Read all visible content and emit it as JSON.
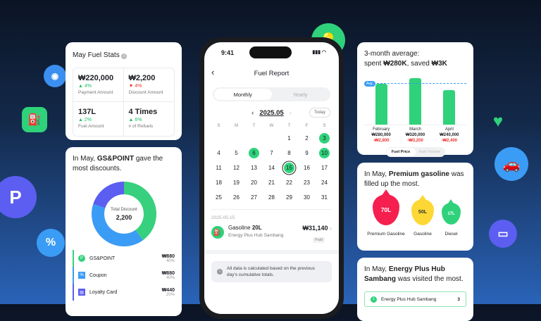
{
  "stats_card": {
    "title": "May Fuel Stats",
    "items": [
      {
        "value": "₩220,000",
        "change": "▲ 4%",
        "dir": "up",
        "label": "Payment Amount"
      },
      {
        "value": "₩2,200",
        "change": "▼ 4%",
        "dir": "down",
        "label": "Discount Amount"
      },
      {
        "value": "137L",
        "change": "▲ 2%",
        "dir": "up",
        "label": "Fuel Amount"
      },
      {
        "value": "4 Times",
        "change": "▲ 6%",
        "dir": "up",
        "label": "# of Refuels"
      }
    ]
  },
  "discount_card": {
    "title_pre": "In May, ",
    "title_bold": "GS&POINT",
    "title_post": " gave the most discounts.",
    "center_label": "Total Discount",
    "center_value": "2,200",
    "chart_data": {
      "type": "pie",
      "categories": [
        "GS&POINT",
        "Coupon",
        "Loyalty Card"
      ],
      "values": [
        880,
        880,
        440
      ],
      "percents": [
        40,
        40,
        20
      ],
      "colors": [
        "#37d07e",
        "#3b9cf5",
        "#5b5ef0"
      ]
    },
    "items": [
      {
        "label": "GS&POINT",
        "amount": "₩880",
        "pct": "40%",
        "icon": "P"
      },
      {
        "label": "Coupon",
        "amount": "₩880",
        "pct": "40%",
        "icon": "%"
      },
      {
        "label": "Loyalty Card",
        "amount": "₩440",
        "pct": "20%",
        "icon": "▤"
      }
    ]
  },
  "phone": {
    "time": "9:41",
    "title": "Fuel Report",
    "tabs": [
      "Monthly",
      "Yearly"
    ],
    "month": "2025.05",
    "today": "Today",
    "weekdays": [
      "S",
      "M",
      "T",
      "W",
      "T",
      "F",
      "S"
    ],
    "start_offset": 4,
    "days": 31,
    "fueled_days": [
      3,
      6,
      10
    ],
    "selected_day": 15,
    "entry_date": "2025-05-15",
    "entry_fuel": "Gasoline",
    "entry_volume": "20L",
    "entry_station": "Energy Plus Hub Sambang",
    "entry_amount": "₩31,140",
    "entry_status": "Paid",
    "notice": "All data is calculated based on the previous day's cumulative totals."
  },
  "avg_card": {
    "line1": "3-month average:",
    "line2_pre": "spent ",
    "spent": "₩280K",
    "line2_mid": ", saved ",
    "saved": "₩3K",
    "avg_label": "Avg.",
    "chart_data": {
      "type": "bar",
      "categories": [
        "February",
        "March",
        "April"
      ],
      "values": [
        280000,
        320000,
        240000
      ],
      "savings": [
        "-₩2,800",
        "-₩3,200",
        "-₩2,400"
      ],
      "value_labels": [
        "₩280,000",
        "₩320,000",
        "₩240,000"
      ],
      "average": 280000
    },
    "toggle": [
      "Fuel Price",
      "Fuel Volume"
    ]
  },
  "fuel_type_card": {
    "title_pre": "In May, ",
    "title_bold": "Premium gasoline",
    "title_post": " was filled up the most.",
    "items": [
      {
        "value": "70L",
        "label": "Premium Gasoline",
        "color": "#f5204f"
      },
      {
        "value": "50L",
        "label": "Gasoline",
        "color": "#fdd835"
      },
      {
        "value": "17L",
        "label": "Diesel",
        "color": "#2fd27a"
      }
    ]
  },
  "station_card": {
    "title_pre": "In May, ",
    "title_bold": "Energy Plus Hub Sambang",
    "title_post": " was visited the most.",
    "rank": "1",
    "station": "Energy Plus Hub Sambang",
    "count": "3"
  }
}
